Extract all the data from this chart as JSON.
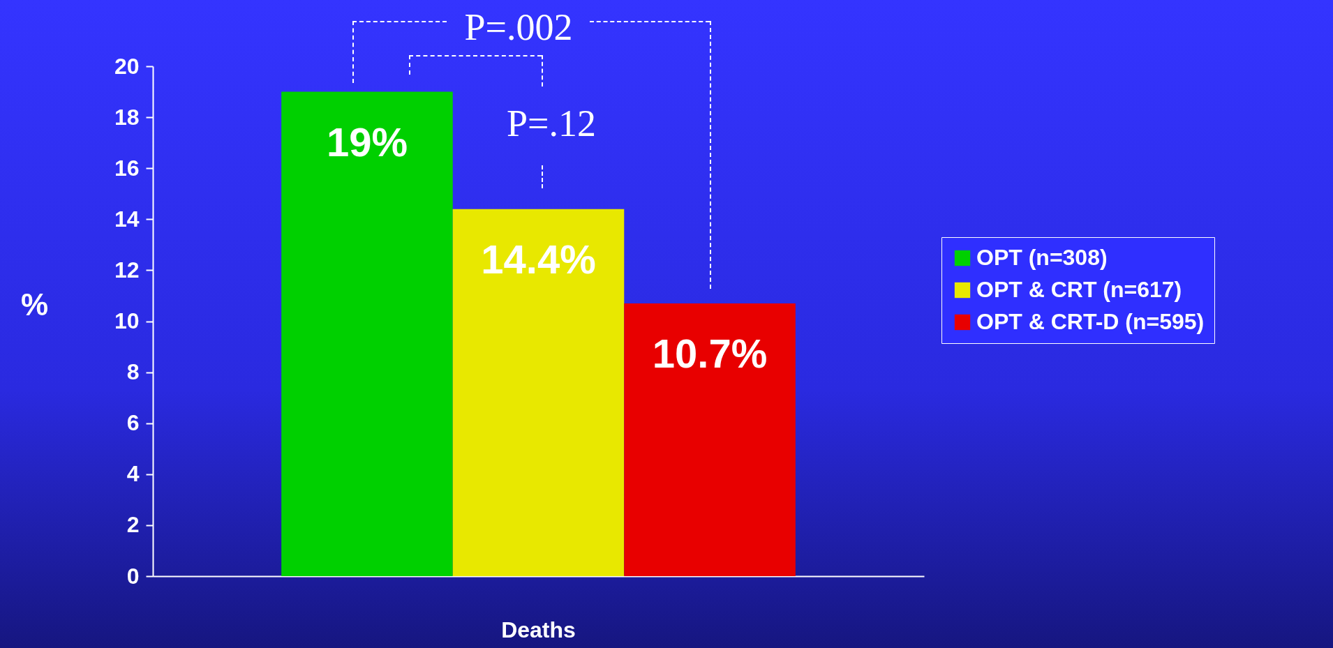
{
  "chart_data": {
    "type": "bar",
    "categories": [
      "Deaths"
    ],
    "ylabel": "%",
    "ylim": [
      0,
      20
    ],
    "yticks": [
      0,
      2,
      4,
      6,
      8,
      10,
      12,
      14,
      16,
      18,
      20
    ],
    "grid": false,
    "legend": "right",
    "series": [
      {
        "name": "OPT (n=308)",
        "color": "#00d000",
        "values": [
          19
        ],
        "value_labels": [
          "19%"
        ]
      },
      {
        "name": "OPT & CRT (n=617)",
        "color": "#e8e800",
        "values": [
          14.4
        ],
        "value_labels": [
          "14.4%"
        ]
      },
      {
        "name": "OPT & CRT-D (n=595)",
        "color": "#e80000",
        "values": [
          10.7
        ],
        "value_labels": [
          "10.7%"
        ]
      }
    ],
    "annotations": [
      "P=.002",
      "P=.12"
    ]
  }
}
